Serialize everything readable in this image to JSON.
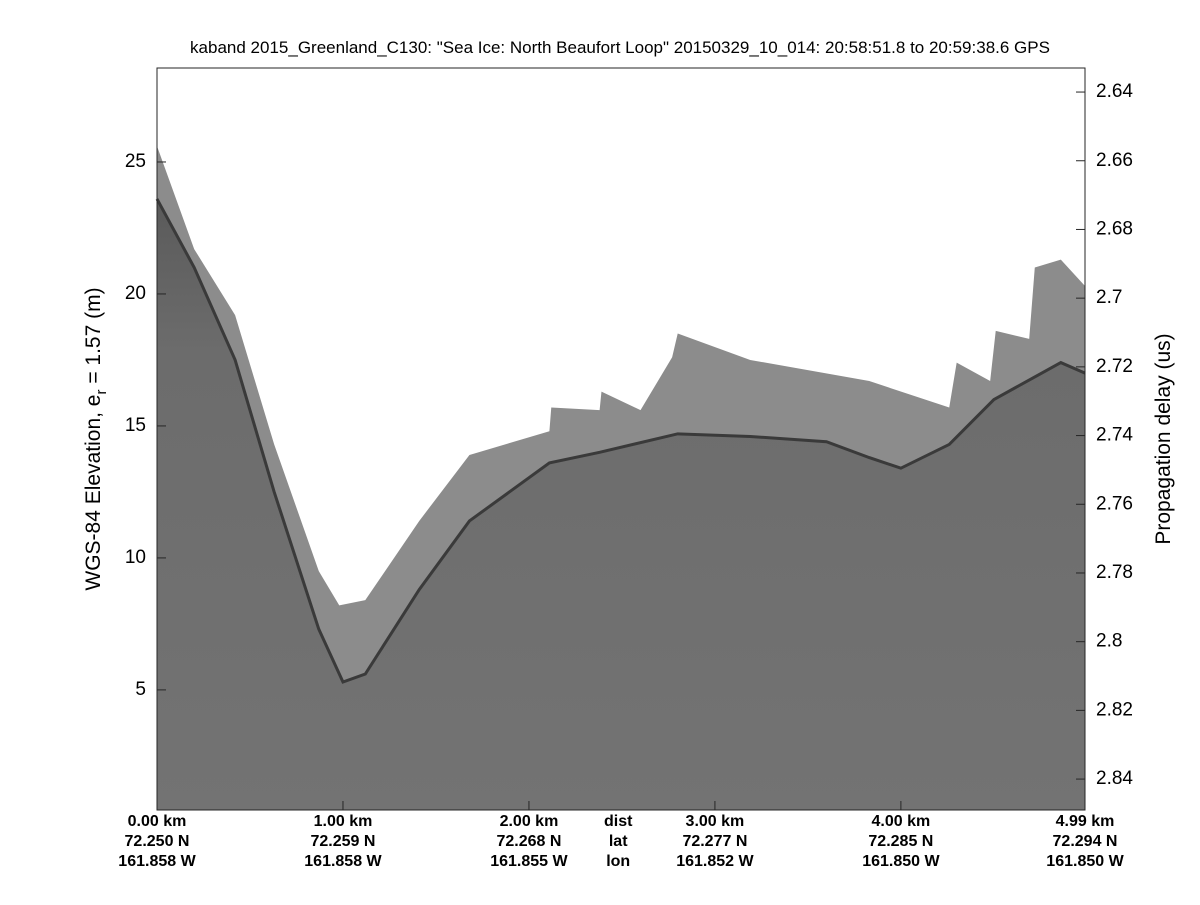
{
  "chart_data": {
    "type": "echogram",
    "title": "kaband 2015_Greenland_C130: \"Sea Ice: North Beaufort Loop\"  20150329_10_014: 20:58:51.8 to 20:59:38.6 GPS",
    "ylabel": [
      "WGS-84 Elevation, e",
      "r",
      " = 1.57 (m)"
    ],
    "y2label": "Propagation delay (us)",
    "xlim": [
      0,
      4.99
    ],
    "xticks": [
      {
        "value": 0,
        "label": "0.00 km"
      },
      {
        "value": 1,
        "label": "1.00 km"
      },
      {
        "value": 2,
        "label": "2.00 km"
      },
      {
        "value": 3,
        "label": "3.00 km"
      },
      {
        "value": 4,
        "label": "4.00 km"
      },
      {
        "value": 4.99,
        "label": "4.99 km"
      }
    ],
    "lat_labels": [
      "72.250 N",
      "72.259 N",
      "72.268 N",
      "72.277 N",
      "72.285 N",
      "72.294 N"
    ],
    "lon_labels": [
      "161.858 W",
      "161.858 W",
      "161.855 W",
      "161.852 W",
      "161.850 W",
      "161.850 W"
    ],
    "row_names": [
      "dist",
      "lat",
      "lon"
    ],
    "row_names_x": 2.48,
    "ylim": [
      0.45,
      28.56
    ],
    "yticks": [
      5,
      10,
      15,
      20,
      25
    ],
    "y2lim": [
      2.633,
      2.849
    ],
    "y2_reversed": true,
    "y2ticks": [
      2.64,
      2.66,
      2.68,
      2.7,
      2.72,
      2.74,
      2.76,
      2.78,
      2.8,
      2.82,
      2.84
    ],
    "series": [
      {
        "color": "#8c8c8c",
        "x": [
          0,
          0.2,
          0.42,
          0.63,
          0.87,
          0.98,
          1.12,
          1.41,
          1.68,
          2.11,
          2.12,
          2.38,
          2.39,
          2.6,
          2.77,
          2.8,
          3.19,
          3.83,
          4.26,
          4.3,
          4.48,
          4.51,
          4.69,
          4.72,
          4.86,
          4.99
        ],
        "values": [
          25.6,
          21.7,
          19.2,
          14.3,
          9.5,
          8.2,
          8.4,
          11.4,
          13.9,
          14.8,
          15.7,
          15.6,
          16.3,
          15.6,
          17.6,
          18.5,
          17.5,
          16.7,
          15.7,
          17.4,
          16.7,
          18.6,
          18.3,
          21.0,
          21.3,
          20.3
        ]
      },
      {
        "color": "#5e5e5e",
        "x": [
          0,
          0.2,
          0.42,
          0.63,
          0.87,
          1.0,
          1.12,
          1.41,
          1.68,
          2.11,
          2.38,
          2.8,
          3.19,
          3.6,
          3.83,
          4.0,
          4.26,
          4.5,
          4.86,
          4.99
        ],
        "values": [
          23.6,
          21.0,
          17.5,
          12.5,
          7.3,
          5.3,
          5.6,
          8.8,
          11.4,
          13.6,
          14.0,
          14.7,
          14.6,
          14.4,
          13.8,
          13.4,
          14.3,
          16.0,
          17.4,
          17.0
        ]
      }
    ]
  }
}
